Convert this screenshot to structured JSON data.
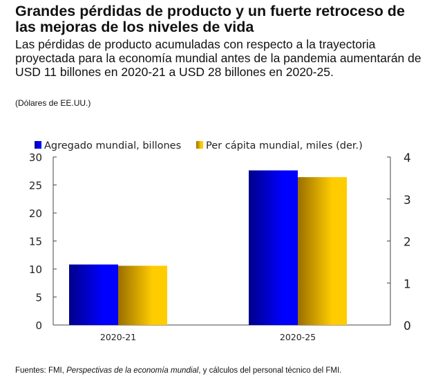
{
  "title": "Grandes pérdidas de producto y un fuerte retroceso de las mejoras de los niveles de vida",
  "subtitle": "Las pérdidas de producto acumuladas con respecto a la trayectoria proyectada para la economía mundial antes de la pandemia aumentarán de USD 11 billones en 2020-21 a USD 28 billones en 2020-25.",
  "units": "(Dólares de EE.UU.)",
  "source": {
    "prefix": "Fuentes: FMI, ",
    "italic": "Perspectivas de la economía mundial",
    "suffix": ", y cálculos del personal técnico del FMI."
  },
  "chart_data": {
    "type": "bar",
    "categories": [
      "2020-21",
      "2020-25"
    ],
    "series": [
      {
        "name": "Agregado mundial, billones",
        "axis": "left",
        "values": [
          10.8,
          27.6
        ],
        "color_dark": "#00008a",
        "color": "#0000ff"
      },
      {
        "name": "Per cápita mundial, miles (der.)",
        "axis": "right",
        "values": [
          1.41,
          3.52
        ],
        "color_dark": "#9a6e00",
        "color": "#ffcc00"
      }
    ],
    "left_axis": {
      "min": 0,
      "max": 30,
      "ticks": [
        0,
        5,
        10,
        15,
        20,
        25,
        30
      ]
    },
    "right_axis": {
      "min": 0,
      "max": 4,
      "ticks": [
        0,
        1,
        2,
        3,
        4
      ]
    },
    "legend": "top",
    "grid": false
  }
}
